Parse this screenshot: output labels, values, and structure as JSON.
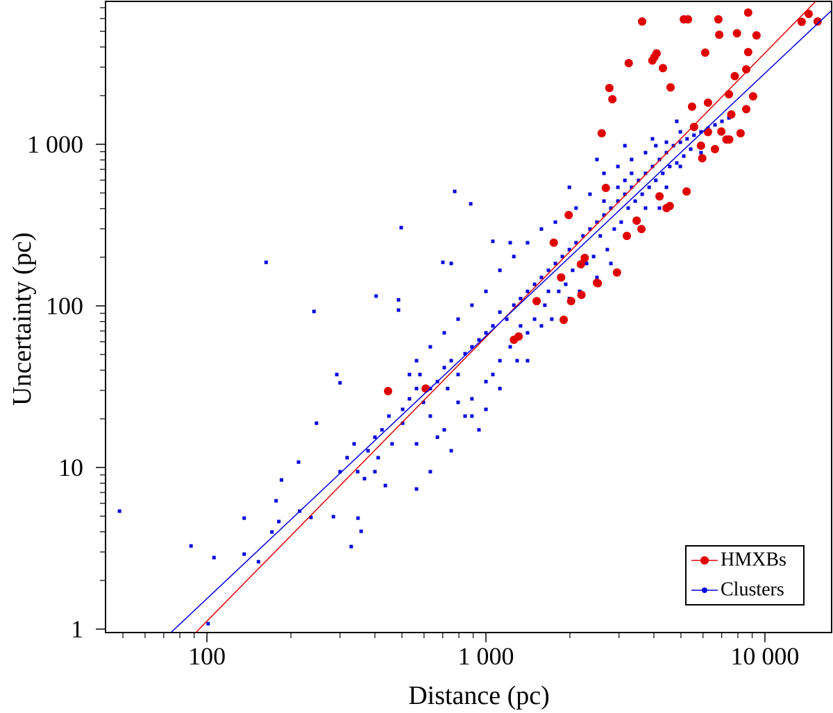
{
  "chart_data": {
    "type": "scatter",
    "xlabel": "Distance (pc)",
    "ylabel": "Uncertainty (pc)",
    "xscale": "log",
    "yscale": "log",
    "xlim": [
      43.3,
      17340
    ],
    "ylim": [
      0.952,
      7660
    ],
    "xticks": [
      100,
      {
        "value": 1000,
        "label": "1 000"
      },
      {
        "value": 10000,
        "label": "10 000"
      }
    ],
    "yticks": [
      1,
      10,
      100,
      {
        "value": 1000,
        "label": "1 000"
      }
    ],
    "x_minor_ticks": [
      50,
      60,
      70,
      80,
      90,
      200,
      300,
      400,
      500,
      600,
      700,
      800,
      900,
      2000,
      3000,
      4000,
      5000,
      6000,
      7000,
      8000,
      9000
    ],
    "y_minor_ticks": [
      2,
      3,
      4,
      5,
      6,
      7,
      8,
      9,
      20,
      30,
      40,
      50,
      60,
      70,
      80,
      90,
      200,
      300,
      400,
      500,
      600,
      700,
      800,
      900,
      2000,
      3000,
      4000,
      5000,
      6000,
      7000
    ],
    "legend": "lower right",
    "series": [
      {
        "name": "HMXBs",
        "color": "#e00000",
        "marker": "circle",
        "x": [
          3630,
          5120,
          5300,
          6810,
          8710,
          6860,
          7940,
          9330,
          13550,
          14350,
          15450,
          6110,
          8710,
          4020,
          3950,
          4090,
          3250,
          4310,
          8570,
          7800,
          4590,
          2770,
          2840,
          7430,
          9070,
          6250,
          8570,
          5480,
          7580,
          2600,
          5570,
          6250,
          6980,
          8180,
          5900,
          7280,
          7450,
          6620,
          5960,
          5240,
          4560,
          4440,
          4190,
          3470,
          3610,
          3200,
          2950,
          2690,
          1980,
          1750,
          1860,
          2190,
          2260,
          2500,
          2520,
          2200,
          2020,
          1520,
          1310,
          1260,
          1900,
          608,
          446
        ],
        "values": [
          5750,
          5930,
          5930,
          5930,
          6530,
          4760,
          4860,
          4720,
          5720,
          6410,
          5750,
          3690,
          3720,
          3470,
          3300,
          3650,
          3180,
          2960,
          2910,
          2640,
          2250,
          2230,
          1900,
          2040,
          1980,
          1810,
          1650,
          1710,
          1530,
          1170,
          1280,
          1190,
          1200,
          1170,
          980,
          1070,
          1070,
          933,
          820,
          510,
          415,
          403,
          476,
          337,
          299,
          271,
          161,
          537,
          365,
          246,
          150,
          181,
          198,
          139,
          138,
          117,
          107,
          107,
          64.7,
          61.7,
          82,
          30.8,
          29.7
        ],
        "fit": {
          "x": [
            91.2,
            15200
          ],
          "values": [
            0.952,
            7660
          ]
        }
      },
      {
        "name": "Clusters",
        "color": "#0000e0",
        "marker": "square",
        "x": [
          48.6,
          87.7,
          101,
          106,
          136,
          136,
          153,
          163,
          171,
          177,
          181,
          185,
          213,
          215,
          236,
          242,
          247,
          284,
          292,
          300,
          300,
          318,
          329,
          337,
          347,
          348,
          357,
          367,
          378,
          400,
          400,
          404,
          411,
          424,
          436,
          449,
          461,
          486,
          486,
          497,
          503,
          503,
          532,
          532,
          564,
          564,
          564,
          564,
          580,
          597,
          632,
          632,
          632,
          632,
          670,
          670,
          701,
          709,
          709,
          709,
          729,
          751,
          751,
          751,
          773,
          795,
          795,
          795,
          842,
          842,
          882,
          891,
          891,
          891,
          891,
          944,
          944,
          1000,
          1000,
          1000,
          1000,
          1059,
          1059,
          1059,
          1122,
          1122,
          1122,
          1122,
          1188,
          1222,
          1222,
          1259,
          1259,
          1294,
          1331,
          1331,
          1410,
          1410,
          1410,
          1410,
          1494,
          1494,
          1581,
          1581,
          1581,
          1626,
          1675,
          1675,
          1722,
          1774,
          1774,
          1824,
          1879,
          1932,
          1991,
          1991,
          1991,
          2046,
          2104,
          2104,
          2168,
          2228,
          2296,
          2360,
          2360,
          2432,
          2500,
          2500,
          2500,
          2570,
          2649,
          2649,
          2649,
          2723,
          2805,
          2805,
          2884,
          2972,
          2972,
          2972,
          3055,
          3148,
          3148,
          3148,
          3236,
          3327,
          3327,
          3327,
          3428,
          3524,
          3631,
          3733,
          3733,
          3733,
          3846,
          3954,
          3954,
          4064,
          4064,
          4188,
          4188,
          4305,
          4436,
          4436,
          4436,
          4560,
          4699,
          4831,
          4831,
          4977,
          4977,
          4977,
          5117,
          5260,
          5420,
          5570,
          5570,
          5902,
          5902,
          6252,
          6622,
          7015,
          7430
        ],
        "values": [
          5.37,
          3.27,
          1.08,
          2.77,
          4.86,
          2.91,
          2.61,
          186,
          3.99,
          6.22,
          4.63,
          8.37,
          10.8,
          5.37,
          4.91,
          92.4,
          18.8,
          4.96,
          37.6,
          33.4,
          9.42,
          11.5,
          3.24,
          14.0,
          9.42,
          4.86,
          4.03,
          8.53,
          12.7,
          15.4,
          9.42,
          115,
          11.5,
          17.1,
          7.73,
          20.8,
          14.0,
          109,
          94.2,
          305,
          22.9,
          18.8,
          26.6,
          37.6,
          30.8,
          7.36,
          45.8,
          14.0,
          37.6,
          25.3,
          30.8,
          20.8,
          55.8,
          9.42,
          34.0,
          15.4,
          186,
          41.5,
          68.1,
          17.1,
          30.8,
          45.8,
          183,
          12.7,
          511,
          37.6,
          25.3,
          82.8,
          50.6,
          20.8,
          428,
          55.8,
          26.6,
          101,
          20.8,
          61.6,
          17.1,
          68.1,
          22.9,
          123,
          34.0,
          75.2,
          37.6,
          251,
          91.5,
          45.8,
          166,
          30.8,
          82.8,
          55.8,
          246,
          101,
          202,
          45.8,
          111,
          75.2,
          123,
          68.1,
          246,
          45.8,
          136,
          82.8,
          150,
          299,
          75.2,
          101,
          166,
          123,
          82.8,
          183,
          330,
          123,
          202,
          136,
          223,
          542,
          111,
          166,
          246,
          403,
          123,
          271,
          183,
          299,
          491,
          202,
          330,
          150,
          805,
          271,
          365,
          661,
          445,
          223,
          403,
          183,
          299,
          445,
          729,
          542,
          330,
          491,
          598,
          980,
          403,
          542,
          805,
          661,
          445,
          598,
          491,
          661,
          888,
          403,
          542,
          729,
          1081,
          598,
          980,
          805,
          403,
          661,
          888,
          1030,
          542,
          729,
          980,
          766,
          1387,
          1030,
          729,
          1194,
          845,
          1081,
          933,
          1138,
          1294,
          1194,
          888,
          1256,
          1318,
          1387,
          1456
        ],
        "fit": {
          "x": [
            74.3,
            17340
          ],
          "values": [
            0.952,
            6730
          ]
        }
      }
    ]
  }
}
